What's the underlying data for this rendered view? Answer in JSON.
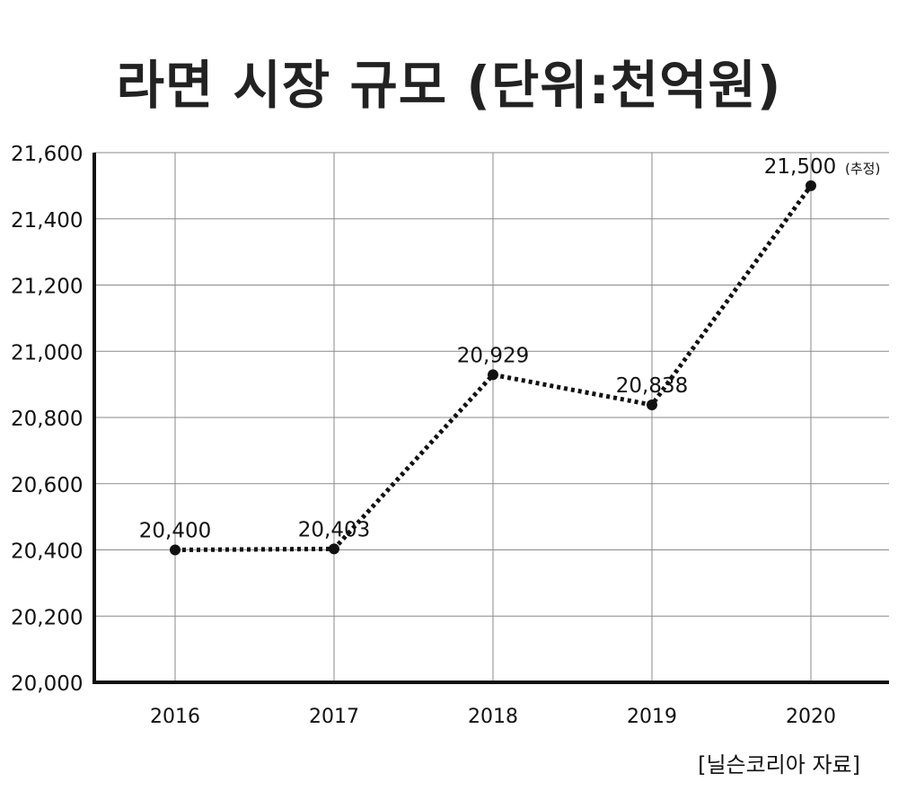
{
  "chart_data": {
    "type": "line",
    "title": "라면 시장 규모 (단위:천억원)",
    "categories": [
      "2016",
      "2017",
      "2018",
      "2019",
      "2020"
    ],
    "series": [
      {
        "values": [
          20400,
          20403,
          20929,
          20838,
          21500
        ],
        "data_labels": [
          "20,400",
          "20,403",
          "20,929",
          "20,838",
          "21,500"
        ]
      }
    ],
    "annotations": [
      {
        "category": "2020",
        "text": "(추정)"
      }
    ],
    "y_ticks": [
      "20,000",
      "20,200",
      "20,400",
      "20,600",
      "20,800",
      "21,000",
      "21,200",
      "21,400",
      "21,600"
    ],
    "ylim": [
      20000,
      21600
    ],
    "grid": true,
    "line_style": "dotted",
    "line_color": "#111111",
    "source": "[닐슨코리아 자료]"
  }
}
